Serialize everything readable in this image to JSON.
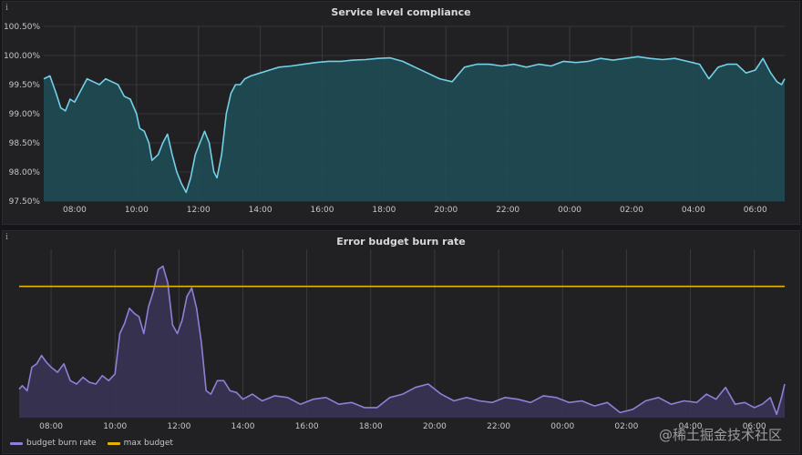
{
  "panels": [
    {
      "title": "Service level compliance",
      "info_icon": "info-icon",
      "chart_data": {
        "type": "area",
        "title": "Service level compliance",
        "x_unit": "hour of day",
        "x_range": [
          7.0,
          30.95
        ],
        "ylim": [
          97.5,
          100.5
        ],
        "y_ticks": [
          "97.50%",
          "98.00%",
          "98.50%",
          "99.00%",
          "99.50%",
          "100.00%",
          "100.50%"
        ],
        "x_ticks": [
          {
            "x": 8,
            "label": "08:00"
          },
          {
            "x": 10,
            "label": "10:00"
          },
          {
            "x": 12,
            "label": "12:00"
          },
          {
            "x": 14,
            "label": "14:00"
          },
          {
            "x": 16,
            "label": "16:00"
          },
          {
            "x": 18,
            "label": "18:00"
          },
          {
            "x": 20,
            "label": "20:00"
          },
          {
            "x": 22,
            "label": "22:00"
          },
          {
            "x": 24,
            "label": "00:00"
          },
          {
            "x": 26,
            "label": "02:00"
          },
          {
            "x": 28,
            "label": "04:00"
          },
          {
            "x": 30,
            "label": "06:00"
          }
        ],
        "grid": true,
        "colors": {
          "line": "#73d0e6",
          "fill": "#1f4e57"
        },
        "series": [
          {
            "x": [
              7.0,
              7.2,
              7.4,
              7.55,
              7.7,
              7.85,
              8.0,
              8.2,
              8.4,
              8.6,
              8.8,
              9.0,
              9.2,
              9.4,
              9.6,
              9.8,
              10.0,
              10.1,
              10.25,
              10.4,
              10.5,
              10.7,
              10.85,
              11.0,
              11.15,
              11.3,
              11.45,
              11.6,
              11.75,
              11.9,
              12.05,
              12.2,
              12.35,
              12.5,
              12.6,
              12.75,
              12.9,
              13.05,
              13.2,
              13.35,
              13.5,
              13.7,
              14.0,
              14.3,
              14.6,
              15.0,
              15.4,
              15.8,
              16.2,
              16.6,
              17.0,
              17.4,
              17.8,
              18.2,
              18.6,
              19.0,
              19.4,
              19.8,
              20.2,
              20.6,
              21.0,
              21.4,
              21.8,
              22.2,
              22.6,
              23.0,
              23.4,
              23.8,
              24.2,
              24.6,
              25.0,
              25.4,
              25.8,
              26.2,
              26.6,
              27.0,
              27.4,
              27.8,
              28.2,
              28.5,
              28.8,
              29.1,
              29.4,
              29.7,
              30.0,
              30.25,
              30.5,
              30.7,
              30.85,
              30.95
            ],
            "y": [
              99.6,
              99.65,
              99.35,
              99.1,
              99.05,
              99.25,
              99.2,
              99.4,
              99.6,
              99.55,
              99.5,
              99.6,
              99.55,
              99.5,
              99.3,
              99.25,
              99.0,
              98.75,
              98.7,
              98.5,
              98.2,
              98.3,
              98.5,
              98.65,
              98.3,
              98.0,
              97.8,
              97.65,
              97.9,
              98.3,
              98.5,
              98.7,
              98.5,
              98.0,
              97.9,
              98.3,
              99.0,
              99.35,
              99.5,
              99.5,
              99.6,
              99.65,
              99.7,
              99.75,
              99.8,
              99.82,
              99.85,
              99.88,
              99.9,
              99.9,
              99.92,
              99.93,
              99.95,
              99.96,
              99.9,
              99.8,
              99.7,
              99.6,
              99.55,
              99.8,
              99.85,
              99.85,
              99.82,
              99.85,
              99.8,
              99.85,
              99.82,
              99.9,
              99.88,
              99.9,
              99.95,
              99.92,
              99.95,
              99.98,
              99.95,
              99.93,
              99.95,
              99.9,
              99.85,
              99.6,
              99.8,
              99.85,
              99.85,
              99.7,
              99.75,
              99.95,
              99.7,
              99.55,
              99.5,
              99.6
            ]
          }
        ]
      }
    },
    {
      "title": "Error budget burn rate",
      "info_icon": "info-icon",
      "chart_data": {
        "type": "area",
        "title": "Error budget burn rate",
        "x_unit": "hour of day",
        "x_range": [
          7.0,
          30.95
        ],
        "ylim": [
          0,
          1.0
        ],
        "x_ticks": [
          {
            "x": 8,
            "label": "08:00"
          },
          {
            "x": 10,
            "label": "10:00"
          },
          {
            "x": 12,
            "label": "12:00"
          },
          {
            "x": 14,
            "label": "14:00"
          },
          {
            "x": 16,
            "label": "16:00"
          },
          {
            "x": 18,
            "label": "18:00"
          },
          {
            "x": 20,
            "label": "20:00"
          },
          {
            "x": 22,
            "label": "22:00"
          },
          {
            "x": 24,
            "label": "00:00"
          },
          {
            "x": 26,
            "label": "02:00"
          },
          {
            "x": 28,
            "label": "04:00"
          },
          {
            "x": 30,
            "label": "06:00"
          }
        ],
        "grid": true,
        "legend_position": "bottom-left",
        "series": [
          {
            "name": "budget burn rate",
            "color": "#8f7fd6",
            "fill": "#3b3458",
            "x": [
              7.0,
              7.1,
              7.25,
              7.4,
              7.55,
              7.7,
              7.85,
              8.0,
              8.2,
              8.4,
              8.6,
              8.8,
              9.0,
              9.2,
              9.4,
              9.6,
              9.8,
              10.0,
              10.15,
              10.3,
              10.45,
              10.6,
              10.75,
              10.9,
              11.05,
              11.2,
              11.35,
              11.5,
              11.65,
              11.8,
              11.95,
              12.1,
              12.25,
              12.4,
              12.55,
              12.7,
              12.85,
              13.0,
              13.2,
              13.4,
              13.6,
              13.8,
              14.0,
              14.3,
              14.6,
              15.0,
              15.4,
              15.8,
              16.2,
              16.6,
              17.0,
              17.4,
              17.8,
              18.2,
              18.6,
              19.0,
              19.4,
              19.8,
              20.2,
              20.6,
              21.0,
              21.4,
              21.8,
              22.2,
              22.6,
              23.0,
              23.4,
              23.8,
              24.2,
              24.6,
              25.0,
              25.4,
              25.8,
              26.2,
              26.6,
              27.0,
              27.4,
              27.8,
              28.2,
              28.5,
              28.8,
              29.1,
              29.4,
              29.7,
              30.0,
              30.25,
              30.5,
              30.7,
              30.85,
              30.95
            ],
            "y": [
              0.17,
              0.19,
              0.16,
              0.3,
              0.32,
              0.37,
              0.33,
              0.3,
              0.27,
              0.32,
              0.22,
              0.2,
              0.24,
              0.21,
              0.2,
              0.25,
              0.22,
              0.26,
              0.5,
              0.56,
              0.65,
              0.62,
              0.6,
              0.5,
              0.66,
              0.75,
              0.88,
              0.9,
              0.8,
              0.55,
              0.5,
              0.58,
              0.72,
              0.77,
              0.65,
              0.45,
              0.16,
              0.14,
              0.22,
              0.22,
              0.16,
              0.15,
              0.11,
              0.14,
              0.1,
              0.13,
              0.12,
              0.08,
              0.11,
              0.12,
              0.08,
              0.09,
              0.06,
              0.06,
              0.12,
              0.14,
              0.18,
              0.2,
              0.14,
              0.1,
              0.12,
              0.1,
              0.09,
              0.12,
              0.11,
              0.09,
              0.13,
              0.12,
              0.09,
              0.1,
              0.07,
              0.09,
              0.03,
              0.05,
              0.1,
              0.12,
              0.08,
              0.1,
              0.09,
              0.14,
              0.11,
              0.18,
              0.08,
              0.09,
              0.06,
              0.08,
              0.12,
              0.02,
              0.12,
              0.2
            ]
          },
          {
            "name": "max budget",
            "color": "#e5b400",
            "x": [
              7.0,
              30.95
            ],
            "y": [
              0.78,
              0.78
            ]
          }
        ]
      }
    }
  ],
  "legend": [
    {
      "label": "budget burn rate",
      "color": "#8f7fd6"
    },
    {
      "label": "max budget",
      "color": "#e5b400"
    }
  ],
  "watermark": "@稀土掘金技术社区"
}
